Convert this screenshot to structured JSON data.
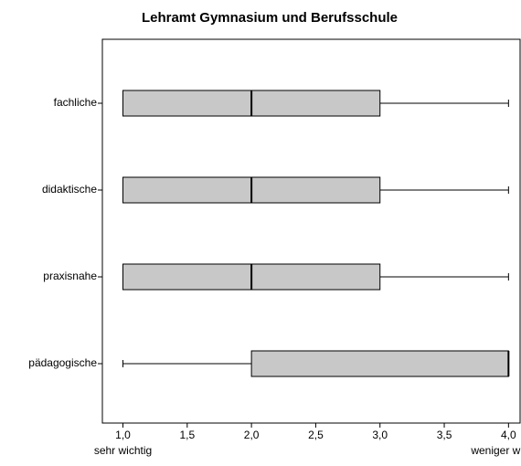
{
  "chart_data": {
    "type": "boxplot",
    "orientation": "horizontal",
    "title": "Lehramt Gymnasium und Berufsschule",
    "categories": [
      "fachliche",
      "didaktische",
      "praxisnahe",
      "pädagogische"
    ],
    "min": [
      1,
      1,
      1,
      1
    ],
    "q1": [
      1,
      1,
      1,
      2
    ],
    "median": [
      2,
      2,
      2,
      4
    ],
    "q3": [
      3,
      3,
      3,
      4
    ],
    "max": [
      4,
      4,
      4,
      4
    ],
    "color": "#c8c8c8",
    "xlim": [
      0.84,
      4.09
    ],
    "xticks": [
      {
        "value": 1,
        "label": "1,0"
      },
      {
        "value": 1.5,
        "label": "1,5"
      },
      {
        "value": 2,
        "label": "2,0"
      },
      {
        "value": 2.5,
        "label": "2,5"
      },
      {
        "value": 3,
        "label": "3,0"
      },
      {
        "value": 3.5,
        "label": "3,5"
      },
      {
        "value": 4,
        "label": "4,0"
      }
    ],
    "x_low_label": "sehr wichtig",
    "x_high_label": "weniger wichtig"
  }
}
